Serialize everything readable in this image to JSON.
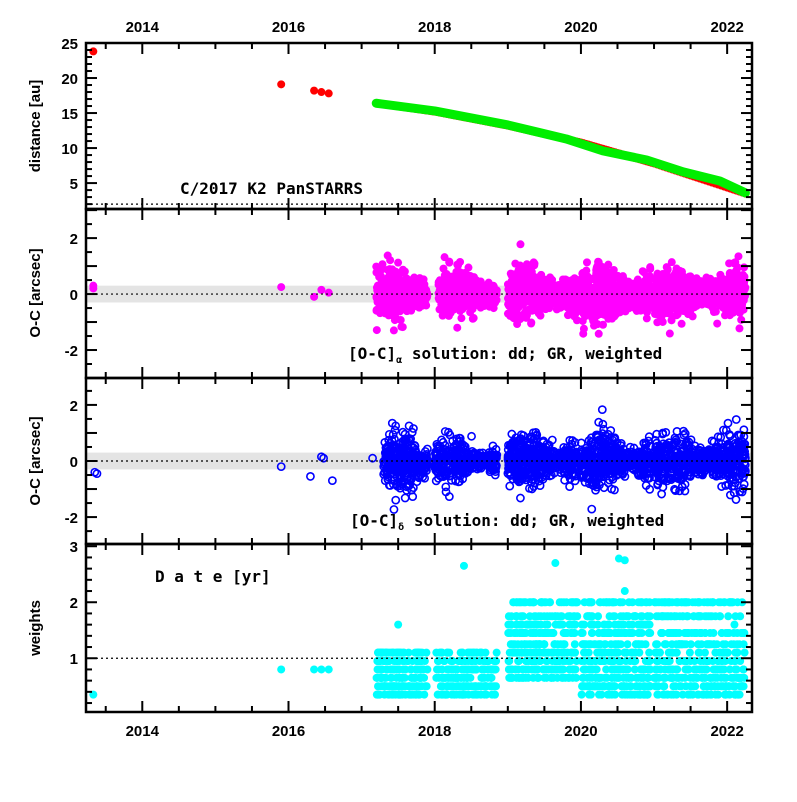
{
  "chart_data": [
    {
      "type": "scatter",
      "title": "C/2017 K2 PanSTARRS",
      "ylabel": "distance [au]",
      "xlim": [
        2013.23,
        2022.34
      ],
      "ylim": [
        1.3,
        25
      ],
      "yticks": [
        5,
        10,
        15,
        20,
        25
      ],
      "xticks_top": [
        2014,
        2016,
        2018,
        2020,
        2022
      ],
      "reference_line": 2.0,
      "series": [
        {
          "name": "distance",
          "color": "#ff0000",
          "marker": "filled",
          "points": [
            [
              2013.33,
              23.8
            ],
            [
              2015.9,
              19.1
            ],
            [
              2016.35,
              18.2
            ],
            [
              2016.45,
              18.0
            ],
            [
              2016.55,
              17.8
            ]
          ],
          "track": [
            [
              2017.2,
              16.4
            ],
            [
              2018.0,
              15.2
            ],
            [
              2019.0,
              13.2
            ],
            [
              2020.0,
              10.8
            ],
            [
              2021.0,
              7.8
            ],
            [
              2022.25,
              3.5
            ]
          ]
        },
        {
          "name": "model",
          "color": "#00ee00",
          "track": [
            [
              2017.2,
              16.4
            ],
            [
              2018.0,
              15.3
            ],
            [
              2019.0,
              13.3
            ],
            [
              2019.8,
              11.3
            ],
            [
              2020.3,
              9.6
            ],
            [
              2020.9,
              8.3
            ],
            [
              2021.4,
              6.6
            ],
            [
              2021.9,
              5.3
            ],
            [
              2022.25,
              3.6
            ]
          ]
        }
      ]
    },
    {
      "type": "scatter",
      "ylabel": "O-C [arcsec]",
      "annotation": "[O-C]",
      "annotation_sub": "α",
      "annotation_rest": " solution: dd; GR, weighted",
      "ylim": [
        -3.0,
        3.04
      ],
      "yticks": [
        -2,
        0,
        2
      ],
      "band": 0.3,
      "series": [
        {
          "name": "O-C RA",
          "color": "#ff00ff",
          "marker": "filled",
          "points": [
            [
              2013.33,
              0.3
            ],
            [
              2013.33,
              0.2
            ],
            [
              2015.9,
              0.25
            ],
            [
              2016.35,
              -0.1
            ],
            [
              2016.45,
              0.15
            ],
            [
              2016.55,
              0.05
            ]
          ],
          "clusters": [
            [
              2017.2,
              2017.9,
              0.45,
              300
            ],
            [
              2018.05,
              2018.85,
              0.42,
              330
            ],
            [
              2019.0,
              2019.95,
              0.48,
              520
            ],
            [
              2020.0,
              2020.95,
              0.48,
              560
            ],
            [
              2021.0,
              2022.25,
              0.45,
              620
            ]
          ]
        }
      ]
    },
    {
      "type": "scatter",
      "ylabel": "O-C [arcsec]",
      "annotation": "[O-C]",
      "annotation_sub": "δ",
      "annotation_rest": " solution: dd; GR, weighted",
      "ylim": [
        -2.96,
        2.96
      ],
      "yticks": [
        -2,
        0,
        2
      ],
      "band": 0.3,
      "series": [
        {
          "name": "O-C Dec",
          "color": "#0000ff",
          "marker": "open",
          "points": [
            [
              2013.35,
              -0.4
            ],
            [
              2013.38,
              -0.45
            ],
            [
              2015.9,
              -0.2
            ],
            [
              2016.3,
              -0.55
            ],
            [
              2016.45,
              0.15
            ],
            [
              2016.48,
              0.1
            ],
            [
              2016.6,
              -0.7
            ],
            [
              2017.15,
              0.1
            ]
          ],
          "clusters": [
            [
              2017.3,
              2017.9,
              0.45,
              320
            ],
            [
              2018.0,
              2018.85,
              0.38,
              330
            ],
            [
              2019.0,
              2019.95,
              0.45,
              500
            ],
            [
              2020.0,
              2020.95,
              0.48,
              540
            ],
            [
              2021.0,
              2022.25,
              0.45,
              640
            ]
          ]
        }
      ]
    },
    {
      "type": "scatter",
      "ylabel": "weights",
      "xlabel": "D a t e [yr]",
      "xticks_bottom": [
        2014,
        2016,
        2018,
        2020,
        2022
      ],
      "ylim": [
        0.04,
        3.04
      ],
      "yticks": [
        1,
        2,
        3
      ],
      "reference_line": 1.0,
      "series": [
        {
          "name": "weights",
          "color": "#00ffff",
          "marker": "filled",
          "points": [
            [
              2013.33,
              0.35
            ],
            [
              2015.9,
              0.8
            ],
            [
              2016.35,
              0.8
            ],
            [
              2016.45,
              0.8
            ],
            [
              2016.55,
              0.8
            ],
            [
              2017.5,
              1.6
            ],
            [
              2018.4,
              2.65
            ],
            [
              2019.65,
              2.7
            ],
            [
              2020.52,
              2.78
            ],
            [
              2020.6,
              2.75
            ],
            [
              2020.6,
              2.2
            ],
            [
              2022.1,
              1.6
            ]
          ],
          "clusters": [
            [
              2017.2,
              2017.9,
              [
                0.35,
                0.5,
                0.65,
                0.8,
                0.95,
                1.1
              ],
              200
            ],
            [
              2018.0,
              2018.85,
              [
                0.35,
                0.5,
                0.65,
                0.8,
                0.95,
                1.1
              ],
              200
            ],
            [
              2019.0,
              2019.95,
              [
                0.65,
                0.8,
                0.95,
                1.1,
                1.25,
                1.45,
                1.6,
                1.75,
                2.0
              ],
              320
            ],
            [
              2020.0,
              2020.95,
              [
                0.35,
                0.5,
                0.65,
                0.8,
                0.95,
                1.1,
                1.25,
                1.45,
                1.6,
                1.75,
                2.0
              ],
              360
            ],
            [
              2021.0,
              2022.25,
              [
                0.35,
                0.5,
                0.65,
                0.8,
                0.95,
                1.1,
                1.25,
                1.45,
                1.75,
                2.0
              ],
              400
            ]
          ]
        }
      ]
    }
  ]
}
